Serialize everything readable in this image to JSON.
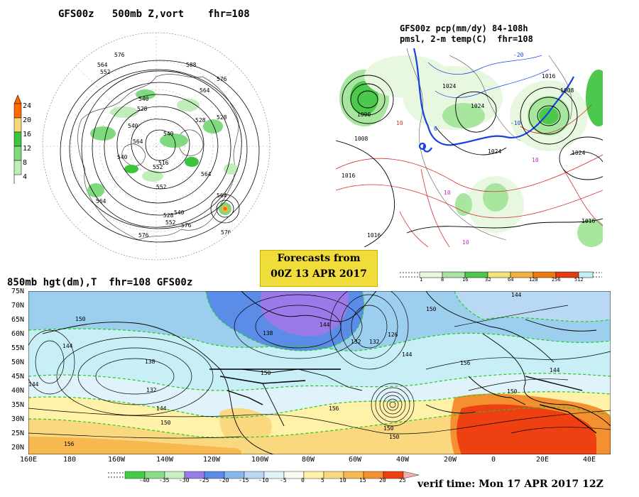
{
  "polar_panel": {
    "title": "GFS00z   500mb Z,vort    fhr=108",
    "colorbar": {
      "labels": [
        "24",
        "20",
        "16",
        "12",
        "8",
        "4"
      ],
      "colors": [
        "#ff6a00",
        "#f4b34a",
        "#f6d77a",
        "#3cc43c",
        "#7fda7f",
        "#bfeebb"
      ]
    },
    "contour_labels": [
      "576",
      "564",
      "552",
      "540",
      "528",
      "516",
      "528",
      "540",
      "552",
      "564",
      "576",
      "564",
      "588",
      "576",
      "564",
      "540",
      "528",
      "552",
      "540",
      "564",
      "576",
      "528",
      "540",
      "552",
      "564",
      "576"
    ]
  },
  "precip_panel": {
    "title_line1": "GFS00z pcp(mm/dy) 84-108h",
    "title_line2": "pmsl, 2-m temp(C)  fhr=108",
    "colorbar": {
      "labels": [
        "1",
        "8",
        "16",
        "32",
        "64",
        "128",
        "256",
        "512"
      ],
      "colors": [
        "#e8f8e0",
        "#a8e6a0",
        "#4cc84c",
        "#f6e27a",
        "#f4b040",
        "#f07a10",
        "#e83a10",
        "#c0f0f8"
      ]
    },
    "pressure_labels": [
      "1000",
      "1008",
      "1016",
      "1016",
      "1024",
      "1024",
      "1024",
      "1016",
      "1008",
      "1016",
      "1024"
    ],
    "temp_labels": [
      "-20",
      "-10",
      "0",
      "10",
      "10",
      "10",
      "10"
    ]
  },
  "forecast_box": {
    "line1": "Forecasts from",
    "line2": "00Z 13 APR 2017"
  },
  "hgt_panel": {
    "title": "850mb hgt(dm),T  fhr=108 GFS00z",
    "lat_labels": [
      "75N",
      "70N",
      "65N",
      "60N",
      "55N",
      "50N",
      "45N",
      "40N",
      "35N",
      "30N",
      "25N",
      "20N"
    ],
    "lon_labels": [
      "160E",
      "180",
      "160W",
      "140W",
      "120W",
      "100W",
      "80W",
      "60W",
      "40W",
      "20W",
      "0",
      "20E",
      "40E"
    ],
    "contour_labels": [
      "150",
      "144",
      "138",
      "132",
      "144",
      "150",
      "156",
      "150",
      "144",
      "138",
      "132",
      "126",
      "132",
      "144",
      "150",
      "156",
      "144",
      "150",
      "144",
      "150",
      "156",
      "144",
      "150"
    ],
    "colorbar": {
      "labels": [
        "-40",
        "-35",
        "-30",
        "-25",
        "-20",
        "-15",
        "-10",
        "-5",
        "0",
        "5",
        "10",
        "15",
        "20",
        "25"
      ],
      "colors": [
        "#44cc44",
        "#88dd88",
        "#c8f0c0",
        "#9a7ae8",
        "#5a8ce8",
        "#8ab8ee",
        "#b8d8f4",
        "#e0f2fa",
        "#fafaf0",
        "#fff2a8",
        "#fad880",
        "#f8b850",
        "#f59030",
        "#ee4010"
      ]
    }
  },
  "verif": {
    "text": "verif time: Mon 17 APR 2017 12Z"
  }
}
